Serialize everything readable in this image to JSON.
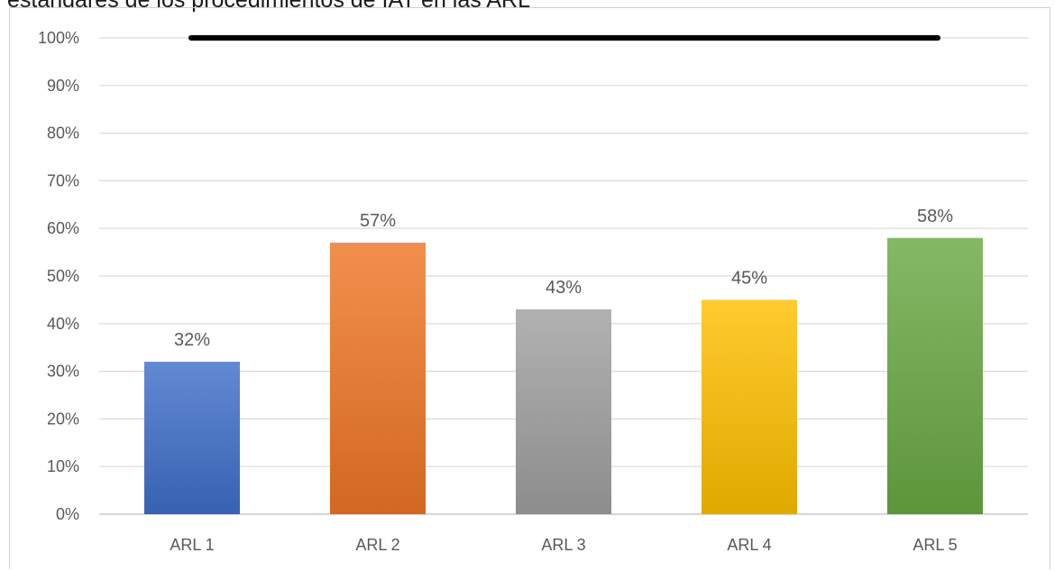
{
  "chart_data": {
    "type": "bar",
    "title": "estándares de los procedimientos de IAT en las ARL",
    "xlabel": "",
    "ylabel": "",
    "categories": [
      "ARL 1",
      "ARL 2",
      "ARL 3",
      "ARL 4",
      "ARL 5"
    ],
    "values": [
      32,
      57,
      43,
      45,
      58
    ],
    "value_labels": [
      "32%",
      "57%",
      "43%",
      "45%",
      "58%"
    ],
    "bar_colors": [
      "#3f6fc9",
      "#ef7626",
      "#a0a0a0",
      "#ffc000",
      "#6aa943"
    ],
    "ylim": [
      0,
      100
    ],
    "yticks": [
      "0%",
      "10%",
      "20%",
      "30%",
      "40%",
      "50%",
      "60%",
      "70%",
      "80%",
      "90%",
      "100%"
    ],
    "reference_line": {
      "value": 100,
      "color": "#000000"
    },
    "grid": true,
    "legend": "none"
  }
}
